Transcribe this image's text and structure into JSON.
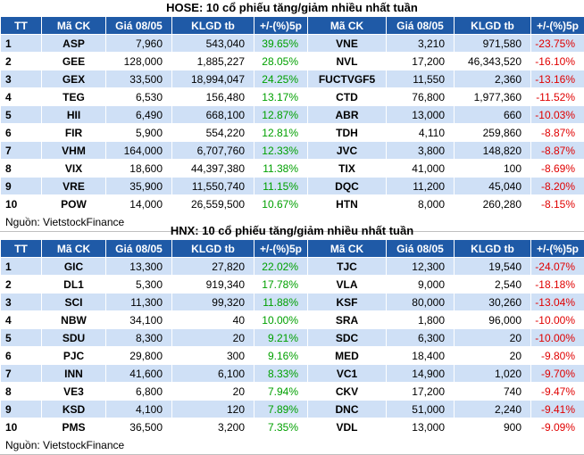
{
  "hose": {
    "title": "HOSE: 10 cổ phiếu tăng/giảm nhiều nhất tuần",
    "headers": [
      "TT",
      "Mã CK",
      "Giá 08/05",
      "KLGD tb",
      "+/-(%)5p",
      "Mã CK",
      "Giá 08/05",
      "KLGD tb",
      "+/-(%)5p"
    ],
    "rows": [
      {
        "tt": "1",
        "up_code": "ASP",
        "up_price": "7,960",
        "up_vol": "543,040",
        "up_pct": "39.65%",
        "dn_code": "VNE",
        "dn_price": "3,210",
        "dn_vol": "971,580",
        "dn_pct": "-23.75%"
      },
      {
        "tt": "2",
        "up_code": "GEE",
        "up_price": "128,000",
        "up_vol": "1,885,227",
        "up_pct": "28.05%",
        "dn_code": "NVL",
        "dn_price": "17,200",
        "dn_vol": "46,343,520",
        "dn_pct": "-16.10%"
      },
      {
        "tt": "3",
        "up_code": "GEX",
        "up_price": "33,500",
        "up_vol": "18,994,047",
        "up_pct": "24.25%",
        "dn_code": "FUCTVGF5",
        "dn_price": "11,550",
        "dn_vol": "2,360",
        "dn_pct": "-13.16%"
      },
      {
        "tt": "4",
        "up_code": "TEG",
        "up_price": "6,530",
        "up_vol": "156,480",
        "up_pct": "13.17%",
        "dn_code": "CTD",
        "dn_price": "76,800",
        "dn_vol": "1,977,360",
        "dn_pct": "-11.52%"
      },
      {
        "tt": "5",
        "up_code": "HII",
        "up_price": "6,490",
        "up_vol": "668,100",
        "up_pct": "12.87%",
        "dn_code": "ABR",
        "dn_price": "13,000",
        "dn_vol": "660",
        "dn_pct": "-10.03%"
      },
      {
        "tt": "6",
        "up_code": "FIR",
        "up_price": "5,900",
        "up_vol": "554,220",
        "up_pct": "12.81%",
        "dn_code": "TDH",
        "dn_price": "4,110",
        "dn_vol": "259,860",
        "dn_pct": "-8.87%"
      },
      {
        "tt": "7",
        "up_code": "VHM",
        "up_price": "164,000",
        "up_vol": "6,707,760",
        "up_pct": "12.33%",
        "dn_code": "JVC",
        "dn_price": "3,800",
        "dn_vol": "148,820",
        "dn_pct": "-8.87%"
      },
      {
        "tt": "8",
        "up_code": "VIX",
        "up_price": "18,600",
        "up_vol": "44,397,380",
        "up_pct": "11.38%",
        "dn_code": "TIX",
        "dn_price": "41,000",
        "dn_vol": "100",
        "dn_pct": "-8.69%"
      },
      {
        "tt": "9",
        "up_code": "VRE",
        "up_price": "35,900",
        "up_vol": "11,550,740",
        "up_pct": "11.15%",
        "dn_code": "DQC",
        "dn_price": "11,200",
        "dn_vol": "45,040",
        "dn_pct": "-8.20%"
      },
      {
        "tt": "10",
        "up_code": "POW",
        "up_price": "14,000",
        "up_vol": "26,559,500",
        "up_pct": "10.67%",
        "dn_code": "HTN",
        "dn_price": "8,000",
        "dn_vol": "260,280",
        "dn_pct": "-8.15%"
      }
    ],
    "source": "Nguồn: VietstockFinance"
  },
  "hnx": {
    "title": "HNX: 10 cổ phiếu tăng/giảm nhiều nhất tuần",
    "headers": [
      "TT",
      "Mã CK",
      "Giá 08/05",
      "KLGD tb",
      "+/-(%)5p",
      "Mã CK",
      "Giá 08/05",
      "KLGD tb",
      "+/-(%)5p"
    ],
    "rows": [
      {
        "tt": "1",
        "up_code": "GIC",
        "up_price": "13,300",
        "up_vol": "27,820",
        "up_pct": "22.02%",
        "dn_code": "TJC",
        "dn_price": "12,300",
        "dn_vol": "19,540",
        "dn_pct": "-24.07%"
      },
      {
        "tt": "2",
        "up_code": "DL1",
        "up_price": "5,300",
        "up_vol": "919,340",
        "up_pct": "17.78%",
        "dn_code": "VLA",
        "dn_price": "9,000",
        "dn_vol": "2,540",
        "dn_pct": "-18.18%"
      },
      {
        "tt": "3",
        "up_code": "SCI",
        "up_price": "11,300",
        "up_vol": "99,320",
        "up_pct": "11.88%",
        "dn_code": "KSF",
        "dn_price": "80,000",
        "dn_vol": "30,260",
        "dn_pct": "-13.04%"
      },
      {
        "tt": "4",
        "up_code": "NBW",
        "up_price": "34,100",
        "up_vol": "40",
        "up_pct": "10.00%",
        "dn_code": "SRA",
        "dn_price": "1,800",
        "dn_vol": "96,000",
        "dn_pct": "-10.00%"
      },
      {
        "tt": "5",
        "up_code": "SDU",
        "up_price": "8,300",
        "up_vol": "20",
        "up_pct": "9.21%",
        "dn_code": "SDC",
        "dn_price": "6,300",
        "dn_vol": "20",
        "dn_pct": "-10.00%"
      },
      {
        "tt": "6",
        "up_code": "PJC",
        "up_price": "29,800",
        "up_vol": "300",
        "up_pct": "9.16%",
        "dn_code": "MED",
        "dn_price": "18,400",
        "dn_vol": "20",
        "dn_pct": "-9.80%"
      },
      {
        "tt": "7",
        "up_code": "INN",
        "up_price": "41,600",
        "up_vol": "6,100",
        "up_pct": "8.33%",
        "dn_code": "VC1",
        "dn_price": "14,900",
        "dn_vol": "1,020",
        "dn_pct": "-9.70%"
      },
      {
        "tt": "8",
        "up_code": "VE3",
        "up_price": "6,800",
        "up_vol": "20",
        "up_pct": "7.94%",
        "dn_code": "CKV",
        "dn_price": "17,200",
        "dn_vol": "740",
        "dn_pct": "-9.47%"
      },
      {
        "tt": "9",
        "up_code": "KSD",
        "up_price": "4,100",
        "up_vol": "120",
        "up_pct": "7.89%",
        "dn_code": "DNC",
        "dn_price": "51,000",
        "dn_vol": "2,240",
        "dn_pct": "-9.41%"
      },
      {
        "tt": "10",
        "up_code": "PMS",
        "up_price": "36,500",
        "up_vol": "3,200",
        "up_pct": "7.35%",
        "dn_code": "VDL",
        "dn_price": "13,000",
        "dn_vol": "900",
        "dn_pct": "-9.09%"
      }
    ],
    "source": "Nguồn: VietstockFinance"
  },
  "colors": {
    "header_bg": "#1f5aa7",
    "odd_row_bg": "#cfe0f6",
    "gain_text": "#00a000",
    "loss_text": "#e00000"
  }
}
